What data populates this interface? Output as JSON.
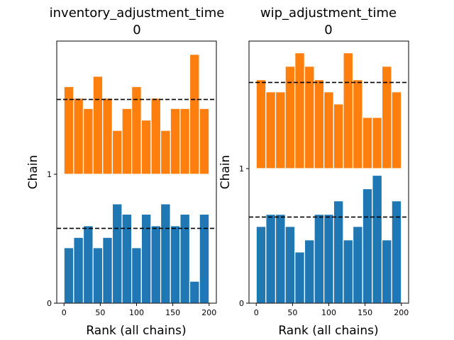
{
  "chart_data": [
    {
      "type": "bar",
      "title_line1": "inventory_adjustment_time",
      "title_line2": "0",
      "xlabel": "Rank (all chains)",
      "ylabel": "Chain",
      "xlim": [
        -10,
        210
      ],
      "xticks": [
        "0",
        "50",
        "100",
        "150",
        "200"
      ],
      "yticks": [
        "0",
        "1"
      ],
      "bin_left_edges": [
        0,
        13.3,
        26.7,
        40,
        53.3,
        66.7,
        80,
        93.3,
        106.7,
        120,
        133.3,
        146.7,
        160,
        173.3,
        186.7
      ],
      "bin_width": 13.3,
      "grid": false,
      "series": [
        {
          "chain": "0",
          "color": "#1f77b4",
          "values": [
            0.43,
            0.51,
            0.6,
            0.43,
            0.51,
            0.77,
            0.69,
            0.43,
            0.69,
            0.6,
            0.77,
            0.6,
            0.69,
            0.17,
            0.69
          ],
          "reference": 0.58
        },
        {
          "chain": "1",
          "color": "#ff7f0e",
          "values": [
            0.68,
            0.59,
            0.51,
            0.76,
            0.59,
            0.34,
            0.51,
            0.68,
            0.42,
            0.59,
            0.34,
            0.51,
            0.51,
            0.93,
            0.51
          ],
          "reference": 0.58
        }
      ]
    },
    {
      "type": "bar",
      "title_line1": "wip_adjustment_time",
      "title_line2": "0",
      "xlabel": "Rank (all chains)",
      "ylabel": "Chain",
      "xlim": [
        -10,
        210
      ],
      "xticks": [
        "0",
        "50",
        "100",
        "150",
        "200"
      ],
      "yticks": [
        "0",
        "1"
      ],
      "bin_left_edges": [
        0,
        13.3,
        26.7,
        40,
        53.3,
        66.7,
        80,
        93.3,
        106.7,
        120,
        133.3,
        146.7,
        160,
        173.3,
        186.7
      ],
      "bin_width": 13.3,
      "grid": false,
      "series": [
        {
          "chain": "0",
          "color": "#1f77b4",
          "values": [
            0.57,
            0.66,
            0.66,
            0.57,
            0.38,
            0.47,
            0.66,
            0.66,
            0.76,
            0.47,
            0.57,
            0.85,
            0.95,
            0.47,
            0.76
          ],
          "reference": 0.64
        },
        {
          "chain": "1",
          "color": "#ff7f0e",
          "values": [
            0.66,
            0.57,
            0.57,
            0.76,
            0.86,
            0.76,
            0.66,
            0.57,
            0.48,
            0.86,
            0.66,
            0.38,
            0.38,
            0.76,
            0.57
          ],
          "reference": 0.64
        }
      ]
    }
  ]
}
